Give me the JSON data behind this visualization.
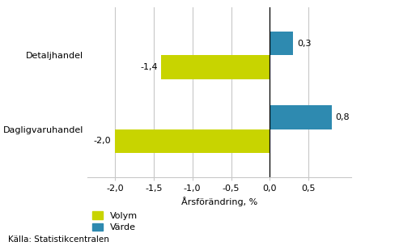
{
  "categories": [
    "Dagligvaruhandel",
    "Detaljhandel"
  ],
  "volym_values": [
    -2.0,
    -1.4
  ],
  "varde_values": [
    0.8,
    0.3
  ],
  "volym_color": "#c8d400",
  "varde_color": "#2e8ab0",
  "xlabel": "Årsförändring, %",
  "xlim": [
    -2.35,
    1.05
  ],
  "xticks": [
    -2.0,
    -1.5,
    -1.0,
    -0.5,
    0.0,
    0.5
  ],
  "xtick_labels": [
    "-2,0",
    "-1,5",
    "-1,0",
    "-0,5",
    "0,0",
    "0,5"
  ],
  "bar_labels_volym": [
    "-2,0",
    "-1,4"
  ],
  "bar_labels_varde": [
    "0,8",
    "0,3"
  ],
  "legend_volym": "Volym",
  "legend_varde": "Värde",
  "source_text": "Källa: Statistikcentralen",
  "background_color": "#ffffff",
  "grid_color": "#c8c8c8",
  "bar_height": 0.32,
  "label_fontsize": 8,
  "axis_fontsize": 8,
  "legend_fontsize": 8,
  "source_fontsize": 7.5
}
